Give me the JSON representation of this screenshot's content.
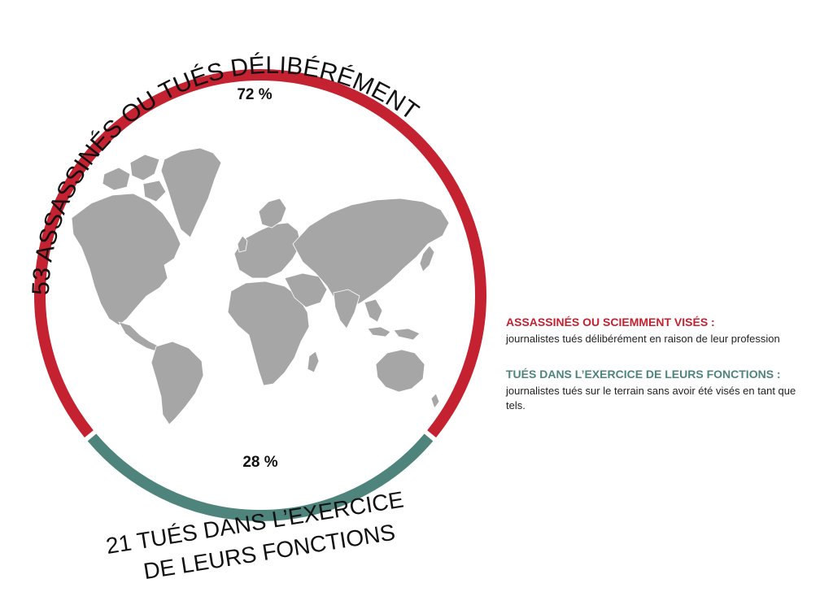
{
  "chart_data": {
    "type": "pie",
    "title": "",
    "slices": [
      {
        "name": "assassines",
        "count": 53,
        "percent": 72,
        "percent_label": "72 %",
        "color": "#c42230",
        "label": "53 ASSASSINÉS OU TUÉS DÉLIBÉRÉMENT"
      },
      {
        "name": "tues-exercice",
        "count": 21,
        "percent": 28,
        "percent_label": "28 %",
        "color": "#4e847c",
        "label_lines": [
          "21 TUÉS DANS L’EXERCICE",
          "DE LEURS FONCTIONS"
        ]
      }
    ]
  },
  "center_icon": "world-map-icon",
  "map_color": "#a6a6a6",
  "legend": [
    {
      "title": "ASSASSINÉS OU SCIEMMENT VISÉS :",
      "desc": "journalistes tués délibérément en raison de leur profession",
      "color": "#c42230"
    },
    {
      "title": "TUÉS DANS L’EXERCICE DE LEURS FONCTIONS :",
      "desc": "journalistes tués sur le terrain sans avoir été visés en tant que tels.",
      "color": "#4e847c"
    }
  ]
}
